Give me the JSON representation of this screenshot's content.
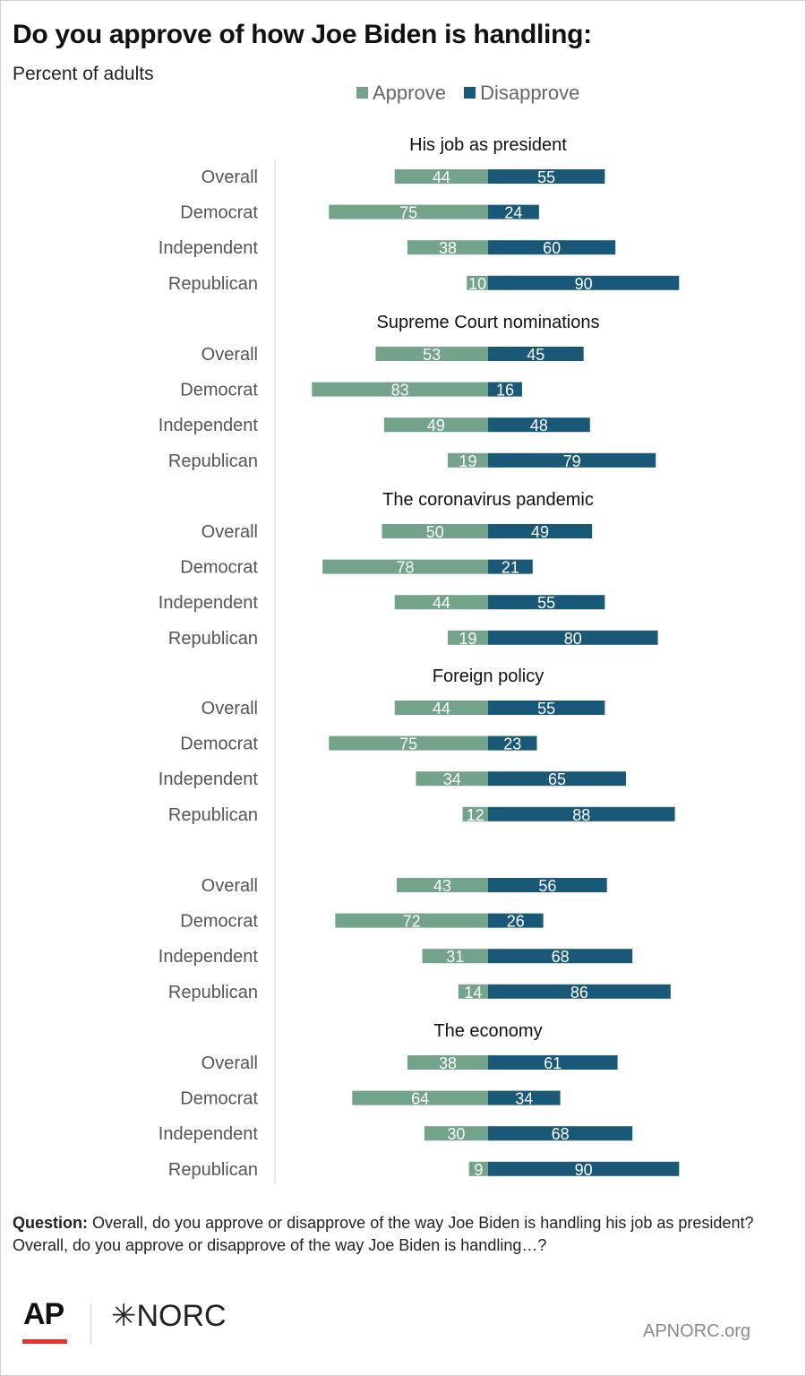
{
  "title": "Do you approve of how Joe Biden is handling:",
  "subtitle": "Percent of adults",
  "legend": [
    {
      "label": "Approve",
      "color": "#73a38a"
    },
    {
      "label": "Disapprove",
      "color": "#1a5878"
    }
  ],
  "colors": {
    "approve": "#73a38a",
    "disapprove": "#1a5878"
  },
  "chart_data": {
    "type": "bar",
    "orientation": "horizontal-diverging",
    "categories": [
      "Overall",
      "Democrat",
      "Independent",
      "Republican"
    ],
    "series_names": [
      "Approve",
      "Disapprove"
    ],
    "panels": [
      {
        "title": "His job as president",
        "approve": [
          44,
          75,
          38,
          10
        ],
        "disapprove": [
          55,
          24,
          60,
          90
        ]
      },
      {
        "title": "Supreme Court nominations",
        "approve": [
          53,
          83,
          49,
          19
        ],
        "disapprove": [
          45,
          16,
          48,
          79
        ]
      },
      {
        "title": "The coronavirus pandemic",
        "approve": [
          50,
          78,
          44,
          19
        ],
        "disapprove": [
          49,
          21,
          55,
          80
        ]
      },
      {
        "title": "Foreign policy",
        "approve": [
          44,
          75,
          34,
          12
        ],
        "disapprove": [
          55,
          23,
          65,
          88
        ]
      },
      {
        "title": "",
        "approve": [
          43,
          72,
          31,
          14
        ],
        "disapprove": [
          56,
          26,
          68,
          86
        ]
      },
      {
        "title": "The economy",
        "approve": [
          38,
          64,
          30,
          9
        ],
        "disapprove": [
          61,
          34,
          68,
          90
        ]
      }
    ],
    "xlim": [
      -100,
      100
    ],
    "grid": false,
    "legend_position": "top"
  },
  "footnote": {
    "question_label": "Question:",
    "question_text": "Overall, do you approve or disapprove of the way Joe Biden is handling his job as president?",
    "line2": "Overall, do you approve or disapprove of the way Joe Biden is handling…?"
  },
  "branding": {
    "ap": "AP",
    "norc": "✳NORC",
    "site": "APNORC.org"
  }
}
